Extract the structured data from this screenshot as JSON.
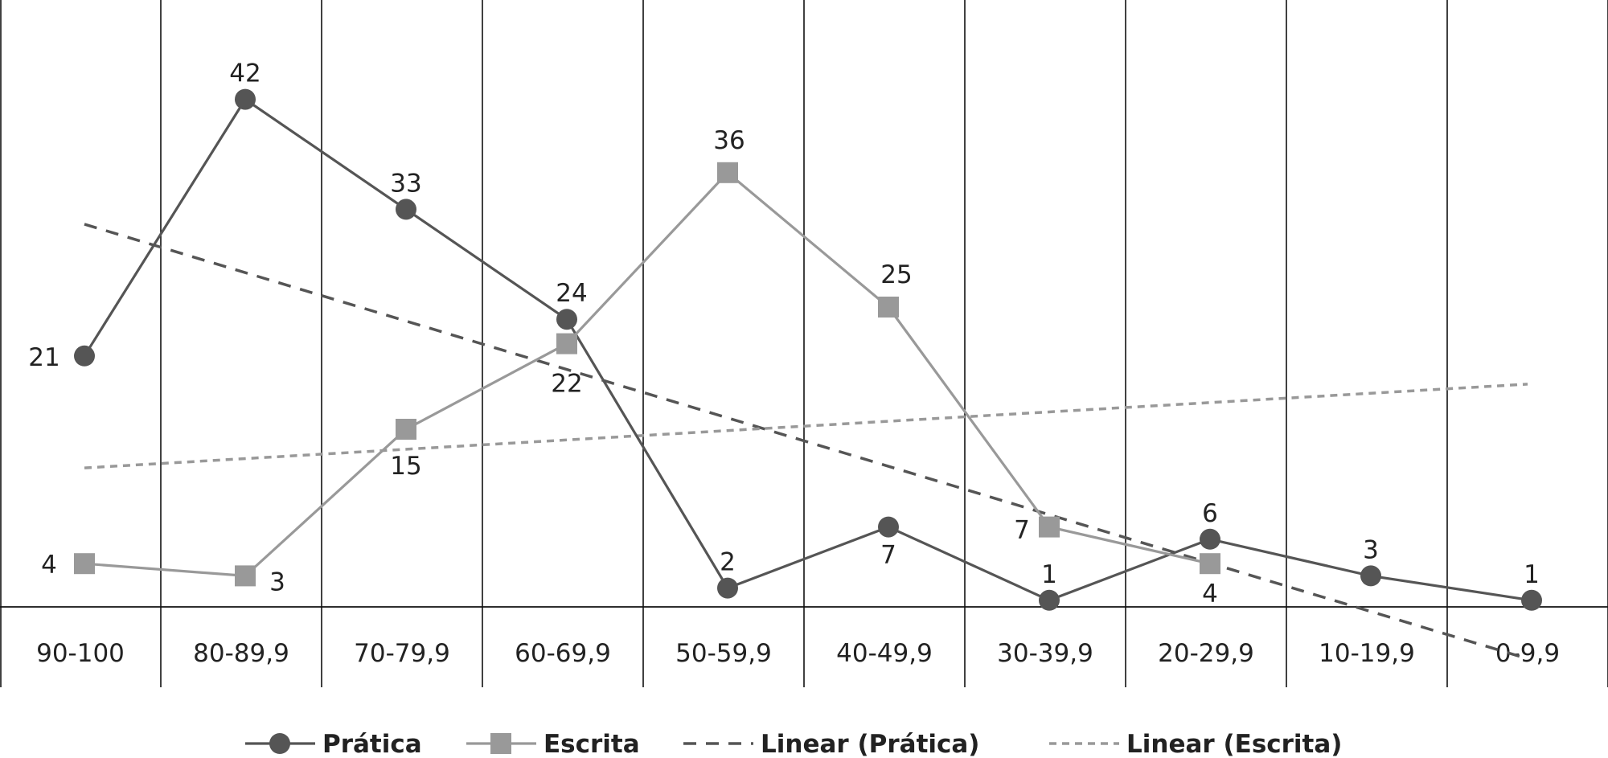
{
  "chart_data": {
    "type": "line",
    "title": "",
    "xlabel": "",
    "ylabel": "",
    "categories": [
      "90-100",
      "80-89,9",
      "70-79,9",
      "60-69,9",
      "50-59,9",
      "40-49,9",
      "30-39,9",
      "20-29,9",
      "10-19,9",
      "0-9,9"
    ],
    "ylim": [
      0,
      44
    ],
    "grid": "vertical",
    "legend_position": "bottom",
    "series": [
      {
        "name": "Prática",
        "values": [
          21,
          42,
          33,
          24,
          2,
          7,
          1,
          6,
          3,
          1
        ],
        "color": "#555555",
        "marker": "circle",
        "labels": [
          "21",
          "42",
          "33",
          "24",
          "2",
          "7",
          "1",
          "6",
          "3",
          "1"
        ]
      },
      {
        "name": "Escrita",
        "values": [
          4,
          3,
          15,
          22,
          36,
          25,
          7,
          4,
          null,
          null
        ],
        "color": "#999999",
        "marker": "square",
        "labels": [
          "4",
          "3",
          "15",
          "22",
          "36",
          "25",
          "7",
          "4",
          "",
          ""
        ]
      }
    ],
    "trendlines": [
      {
        "name": "Linear (Prática)",
        "of": "Prática",
        "type": "linear",
        "color": "#555555",
        "dash": "dashed"
      },
      {
        "name": "Linear (Escrita)",
        "of": "Escrita",
        "type": "linear",
        "color": "#999999",
        "dash": "dotted"
      }
    ]
  }
}
